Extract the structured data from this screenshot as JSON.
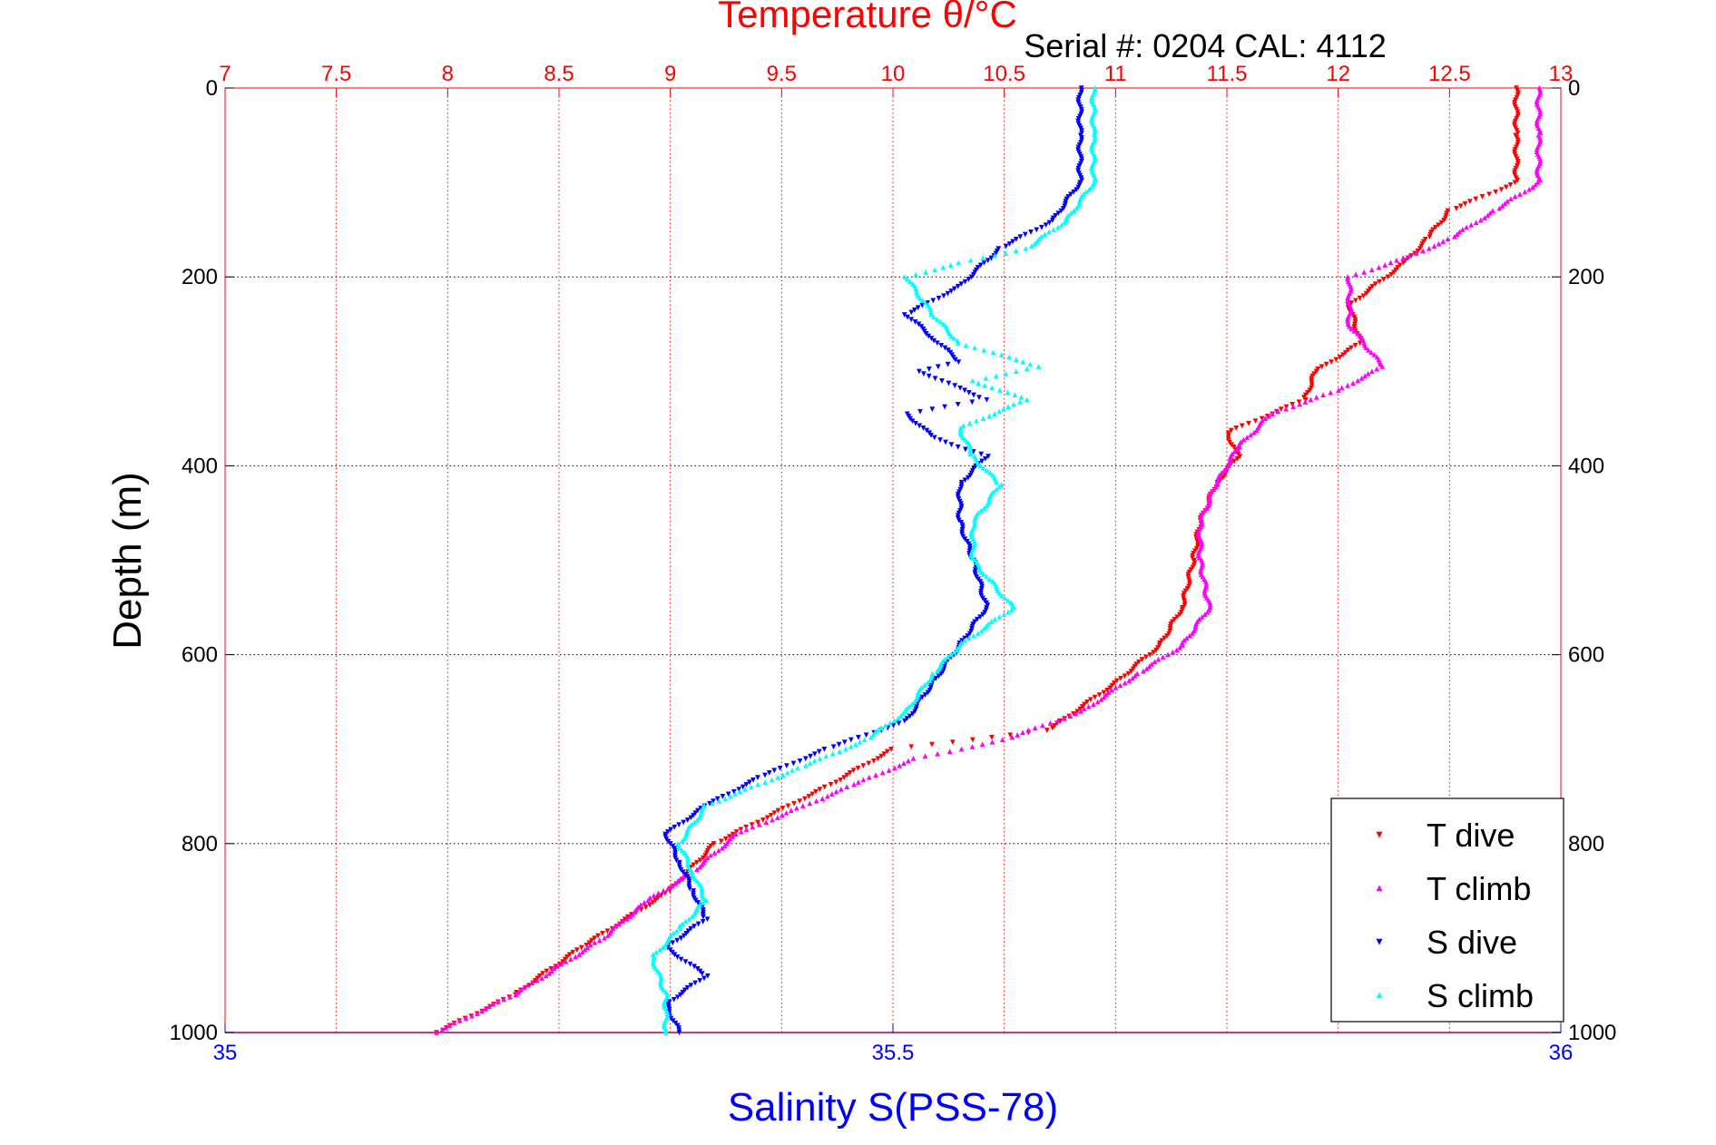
{
  "chart_data": {
    "type": "scatter",
    "title": "Temperature θ/°C",
    "subtitle": "Serial #: 0204  CAL: 4112",
    "xlabel": "Salinity S(PSS-78)",
    "ylabel": "Depth (m)",
    "x_top_axis": {
      "label": "Temperature θ/°C",
      "range": [
        7,
        13
      ],
      "ticks": [
        "7",
        "7.5",
        "8",
        "8.5",
        "9",
        "9.5",
        "10",
        "10.5",
        "11",
        "11.5",
        "12",
        "12.5",
        "13"
      ],
      "color": "#ff0000"
    },
    "x_bottom_axis": {
      "label": "Salinity S(PSS-78)",
      "range": [
        35,
        36
      ],
      "ticks": [
        "35",
        "35.5",
        "36"
      ],
      "color": "#0000ff"
    },
    "y_axis": {
      "label": "Depth (m)",
      "range": [
        0,
        1000
      ],
      "reversed": true,
      "ticks": [
        "0",
        "200",
        "400",
        "600",
        "800",
        "1000"
      ]
    },
    "grid": true,
    "legend_position": "bottom-right",
    "series": [
      {
        "name": "T dive",
        "axis": "temperature",
        "color": "#ff0000",
        "marker": "triangle-down",
        "points": [
          [
            12.8,
            0
          ],
          [
            12.8,
            50
          ],
          [
            12.8,
            100
          ],
          [
            12.5,
            130
          ],
          [
            12.4,
            160
          ],
          [
            12.3,
            185
          ],
          [
            12.05,
            230
          ],
          [
            12.1,
            270
          ],
          [
            11.9,
            300
          ],
          [
            11.85,
            330
          ],
          [
            11.5,
            365
          ],
          [
            11.55,
            390
          ],
          [
            11.45,
            420
          ],
          [
            11.38,
            460
          ],
          [
            11.35,
            500
          ],
          [
            11.3,
            550
          ],
          [
            11.2,
            590
          ],
          [
            11.0,
            630
          ],
          [
            10.7,
            680
          ],
          [
            10.0,
            700
          ],
          [
            9.7,
            740
          ],
          [
            9.2,
            800
          ],
          [
            9.0,
            850
          ],
          [
            8.6,
            910
          ],
          [
            8.3,
            960
          ],
          [
            7.95,
            1000
          ]
        ]
      },
      {
        "name": "T climb",
        "axis": "temperature",
        "color": "#ff00ff",
        "marker": "triangle-up",
        "points": [
          [
            12.9,
            0
          ],
          [
            12.9,
            50
          ],
          [
            12.9,
            100
          ],
          [
            12.7,
            130
          ],
          [
            12.5,
            160
          ],
          [
            12.3,
            180
          ],
          [
            12.05,
            200
          ],
          [
            12.05,
            250
          ],
          [
            12.2,
            295
          ],
          [
            12.0,
            320
          ],
          [
            11.7,
            345
          ],
          [
            11.55,
            380
          ],
          [
            11.45,
            420
          ],
          [
            11.38,
            460
          ],
          [
            11.38,
            500
          ],
          [
            11.42,
            550
          ],
          [
            11.3,
            590
          ],
          [
            11.1,
            620
          ],
          [
            10.85,
            660
          ],
          [
            10.5,
            690
          ],
          [
            10.1,
            710
          ],
          [
            9.8,
            740
          ],
          [
            9.3,
            790
          ],
          [
            9.1,
            830
          ],
          [
            8.9,
            860
          ],
          [
            8.7,
            900
          ],
          [
            8.3,
            960
          ],
          [
            7.95,
            1000
          ]
        ]
      },
      {
        "name": "S dive",
        "axis": "salinity",
        "color": "#0000ff",
        "marker": "triangle-down",
        "points": [
          [
            35.64,
            0
          ],
          [
            35.64,
            50
          ],
          [
            35.64,
            100
          ],
          [
            35.62,
            140
          ],
          [
            35.58,
            170
          ],
          [
            35.55,
            210
          ],
          [
            35.51,
            240
          ],
          [
            35.53,
            265
          ],
          [
            35.55,
            290
          ],
          [
            35.52,
            300
          ],
          [
            35.57,
            330
          ],
          [
            35.51,
            345
          ],
          [
            35.53,
            370
          ],
          [
            35.57,
            390
          ],
          [
            35.55,
            420
          ],
          [
            35.55,
            460
          ],
          [
            35.56,
            500
          ],
          [
            35.57,
            550
          ],
          [
            35.55,
            590
          ],
          [
            35.53,
            630
          ],
          [
            35.51,
            670
          ],
          [
            35.45,
            700
          ],
          [
            35.4,
            730
          ],
          [
            35.36,
            760
          ],
          [
            35.33,
            790
          ],
          [
            35.34,
            820
          ],
          [
            35.35,
            850
          ],
          [
            35.36,
            880
          ],
          [
            35.33,
            910
          ],
          [
            35.36,
            940
          ],
          [
            35.33,
            970
          ],
          [
            35.34,
            1000
          ]
        ]
      },
      {
        "name": "S climb",
        "axis": "salinity",
        "color": "#00ffff",
        "marker": "triangle-up",
        "points": [
          [
            35.65,
            0
          ],
          [
            35.65,
            50
          ],
          [
            35.65,
            100
          ],
          [
            35.63,
            140
          ],
          [
            35.6,
            170
          ],
          [
            35.55,
            185
          ],
          [
            35.51,
            200
          ],
          [
            35.53,
            240
          ],
          [
            35.55,
            270
          ],
          [
            35.61,
            295
          ],
          [
            35.56,
            310
          ],
          [
            35.6,
            330
          ],
          [
            35.55,
            360
          ],
          [
            35.56,
            390
          ],
          [
            35.58,
            420
          ],
          [
            35.56,
            460
          ],
          [
            35.56,
            500
          ],
          [
            35.59,
            550
          ],
          [
            35.55,
            590
          ],
          [
            35.53,
            620
          ],
          [
            35.51,
            660
          ],
          [
            35.48,
            690
          ],
          [
            35.43,
            720
          ],
          [
            35.36,
            760
          ],
          [
            35.34,
            800
          ],
          [
            35.35,
            830
          ],
          [
            35.36,
            860
          ],
          [
            35.34,
            890
          ],
          [
            35.32,
            920
          ],
          [
            35.33,
            960
          ],
          [
            35.33,
            1000
          ]
        ]
      }
    ]
  }
}
